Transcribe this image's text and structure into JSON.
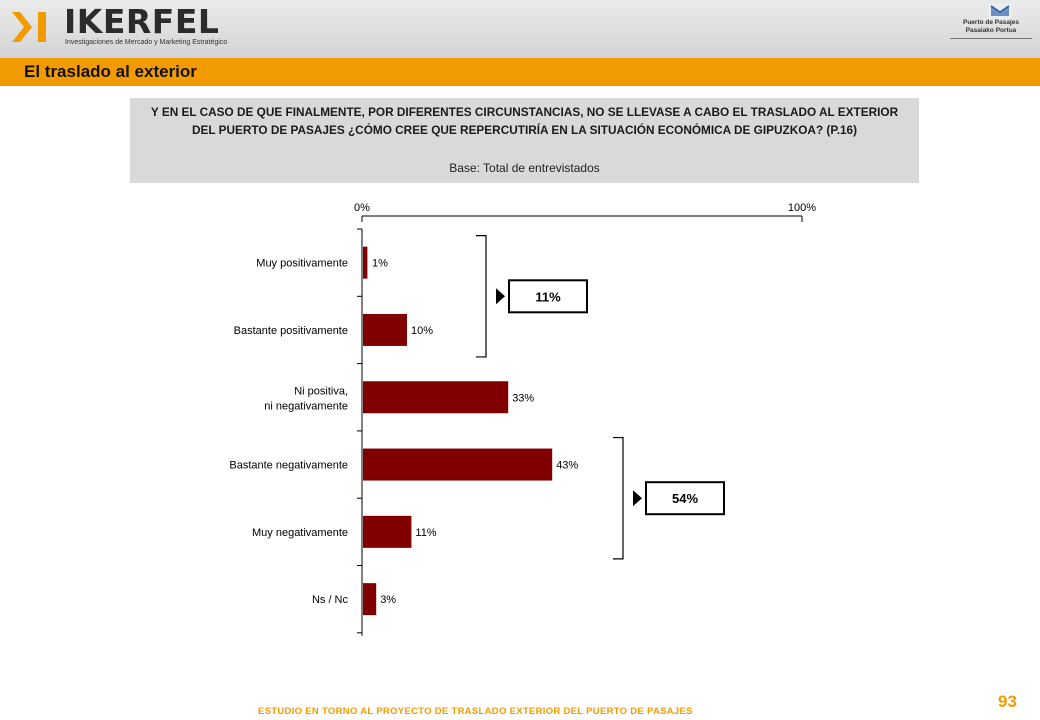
{
  "header": {
    "logo_name": "IKERFEL",
    "logo_tagline": "Investigaciones de Mercado y Marketing Estratégico",
    "port_logo_line1": "Puerto de Pasajes",
    "port_logo_line2": "Pasaiako Portua",
    "colors": {
      "accent": "#f29b00",
      "logo_mark": "#f29b00",
      "header_bg": "#d9d9d9"
    }
  },
  "title": "El traslado al exterior",
  "question": {
    "text_part1": "Y EN EL CASO DE QUE FINALMENTE, POR DIFERENTES CIRCUNSTANCIAS, ",
    "text_emphasis": "NO SE LLEVASE A CABO EL TRASLADO AL EXTERIOR DEL PUERTO DE PASAJES ¿CÓMO CREE QUE REPERCUTIRÍA",
    "text_part2": " EN LA SITUACIÓN ECONÓMICA DE GIPUZKOA? (P.16)",
    "base": "Base: Total de entrevistados"
  },
  "chart_data": {
    "type": "bar",
    "orientation": "horizontal",
    "categories": [
      "Muy positivamente",
      "Bastante positivamente",
      "Ni positiva, ni negativamente",
      "Bastante negativamente",
      "Muy negativamente",
      "Ns / Nc"
    ],
    "values": [
      1,
      10,
      33,
      43,
      11,
      3
    ],
    "value_labels": [
      "1%",
      "10%",
      "33%",
      "43%",
      "11%",
      "3%"
    ],
    "xlim": [
      0,
      100
    ],
    "tick_labels": [
      "0%",
      "100%"
    ],
    "bar_color": "#800000",
    "grid": false,
    "groups": [
      {
        "label": "11%",
        "categories": [
          "Muy positivamente",
          "Bastante positivamente"
        ]
      },
      {
        "label": "54%",
        "categories": [
          "Bastante negativamente",
          "Muy negativamente"
        ]
      }
    ]
  },
  "footer": {
    "study": "ESTUDIO EN TORNO AL PROYECTO DE TRASLADO EXTERIOR DEL PUERTO DE PASAJES",
    "page_number": "93"
  }
}
